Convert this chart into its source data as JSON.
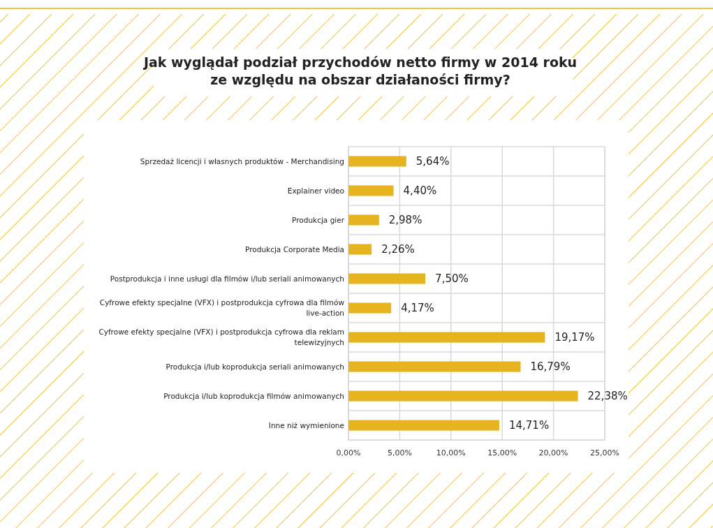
{
  "chart_data": {
    "type": "bar",
    "orientation": "horizontal",
    "title": "Jak wyglądał podział przychodów netto firmy w 2014 roku\nze względu na obszar działaności firmy?",
    "categories": [
      "Sprzedaż licencji i własnych produktów - Merchandising",
      "Explainer video",
      "Produkcja gier",
      "Produkcja Corporate Media",
      "Postprodukcja i inne usługi dla filmów i/lub seriali animowanych",
      "Cyfrowe efekty specjalne (VFX) i postprodukcja cyfrowa dla filmów live-action",
      "Cyfrowe efekty specjalne (VFX) i postprodukcja cyfrowa dla reklam telewizyjnych",
      "Produkcja i/lub koprodukcja seriali animowanych",
      "Produkcja i/lub koprodukcja filmów animowanych",
      "Inne niż wymienione"
    ],
    "values": [
      5.64,
      4.4,
      2.98,
      2.26,
      7.5,
      4.17,
      19.17,
      16.79,
      22.38,
      14.71
    ],
    "value_labels": [
      "5,64%",
      "4,40%",
      "2,98%",
      "2,26%",
      "7,50%",
      "4,17%",
      "19,17%",
      "16,79%",
      "22,38%",
      "14,71%"
    ],
    "color": "#e6b41e",
    "xlim": [
      0,
      25
    ],
    "xticks": [
      {
        "value": 0,
        "label": "0,00%"
      },
      {
        "value": 5,
        "label": "5,00%"
      },
      {
        "value": 10,
        "label": "10,00%"
      },
      {
        "value": 15,
        "label": "15,00%"
      },
      {
        "value": 20,
        "label": "20,00%"
      },
      {
        "value": 25,
        "label": "25,00%"
      }
    ],
    "grid": true
  }
}
